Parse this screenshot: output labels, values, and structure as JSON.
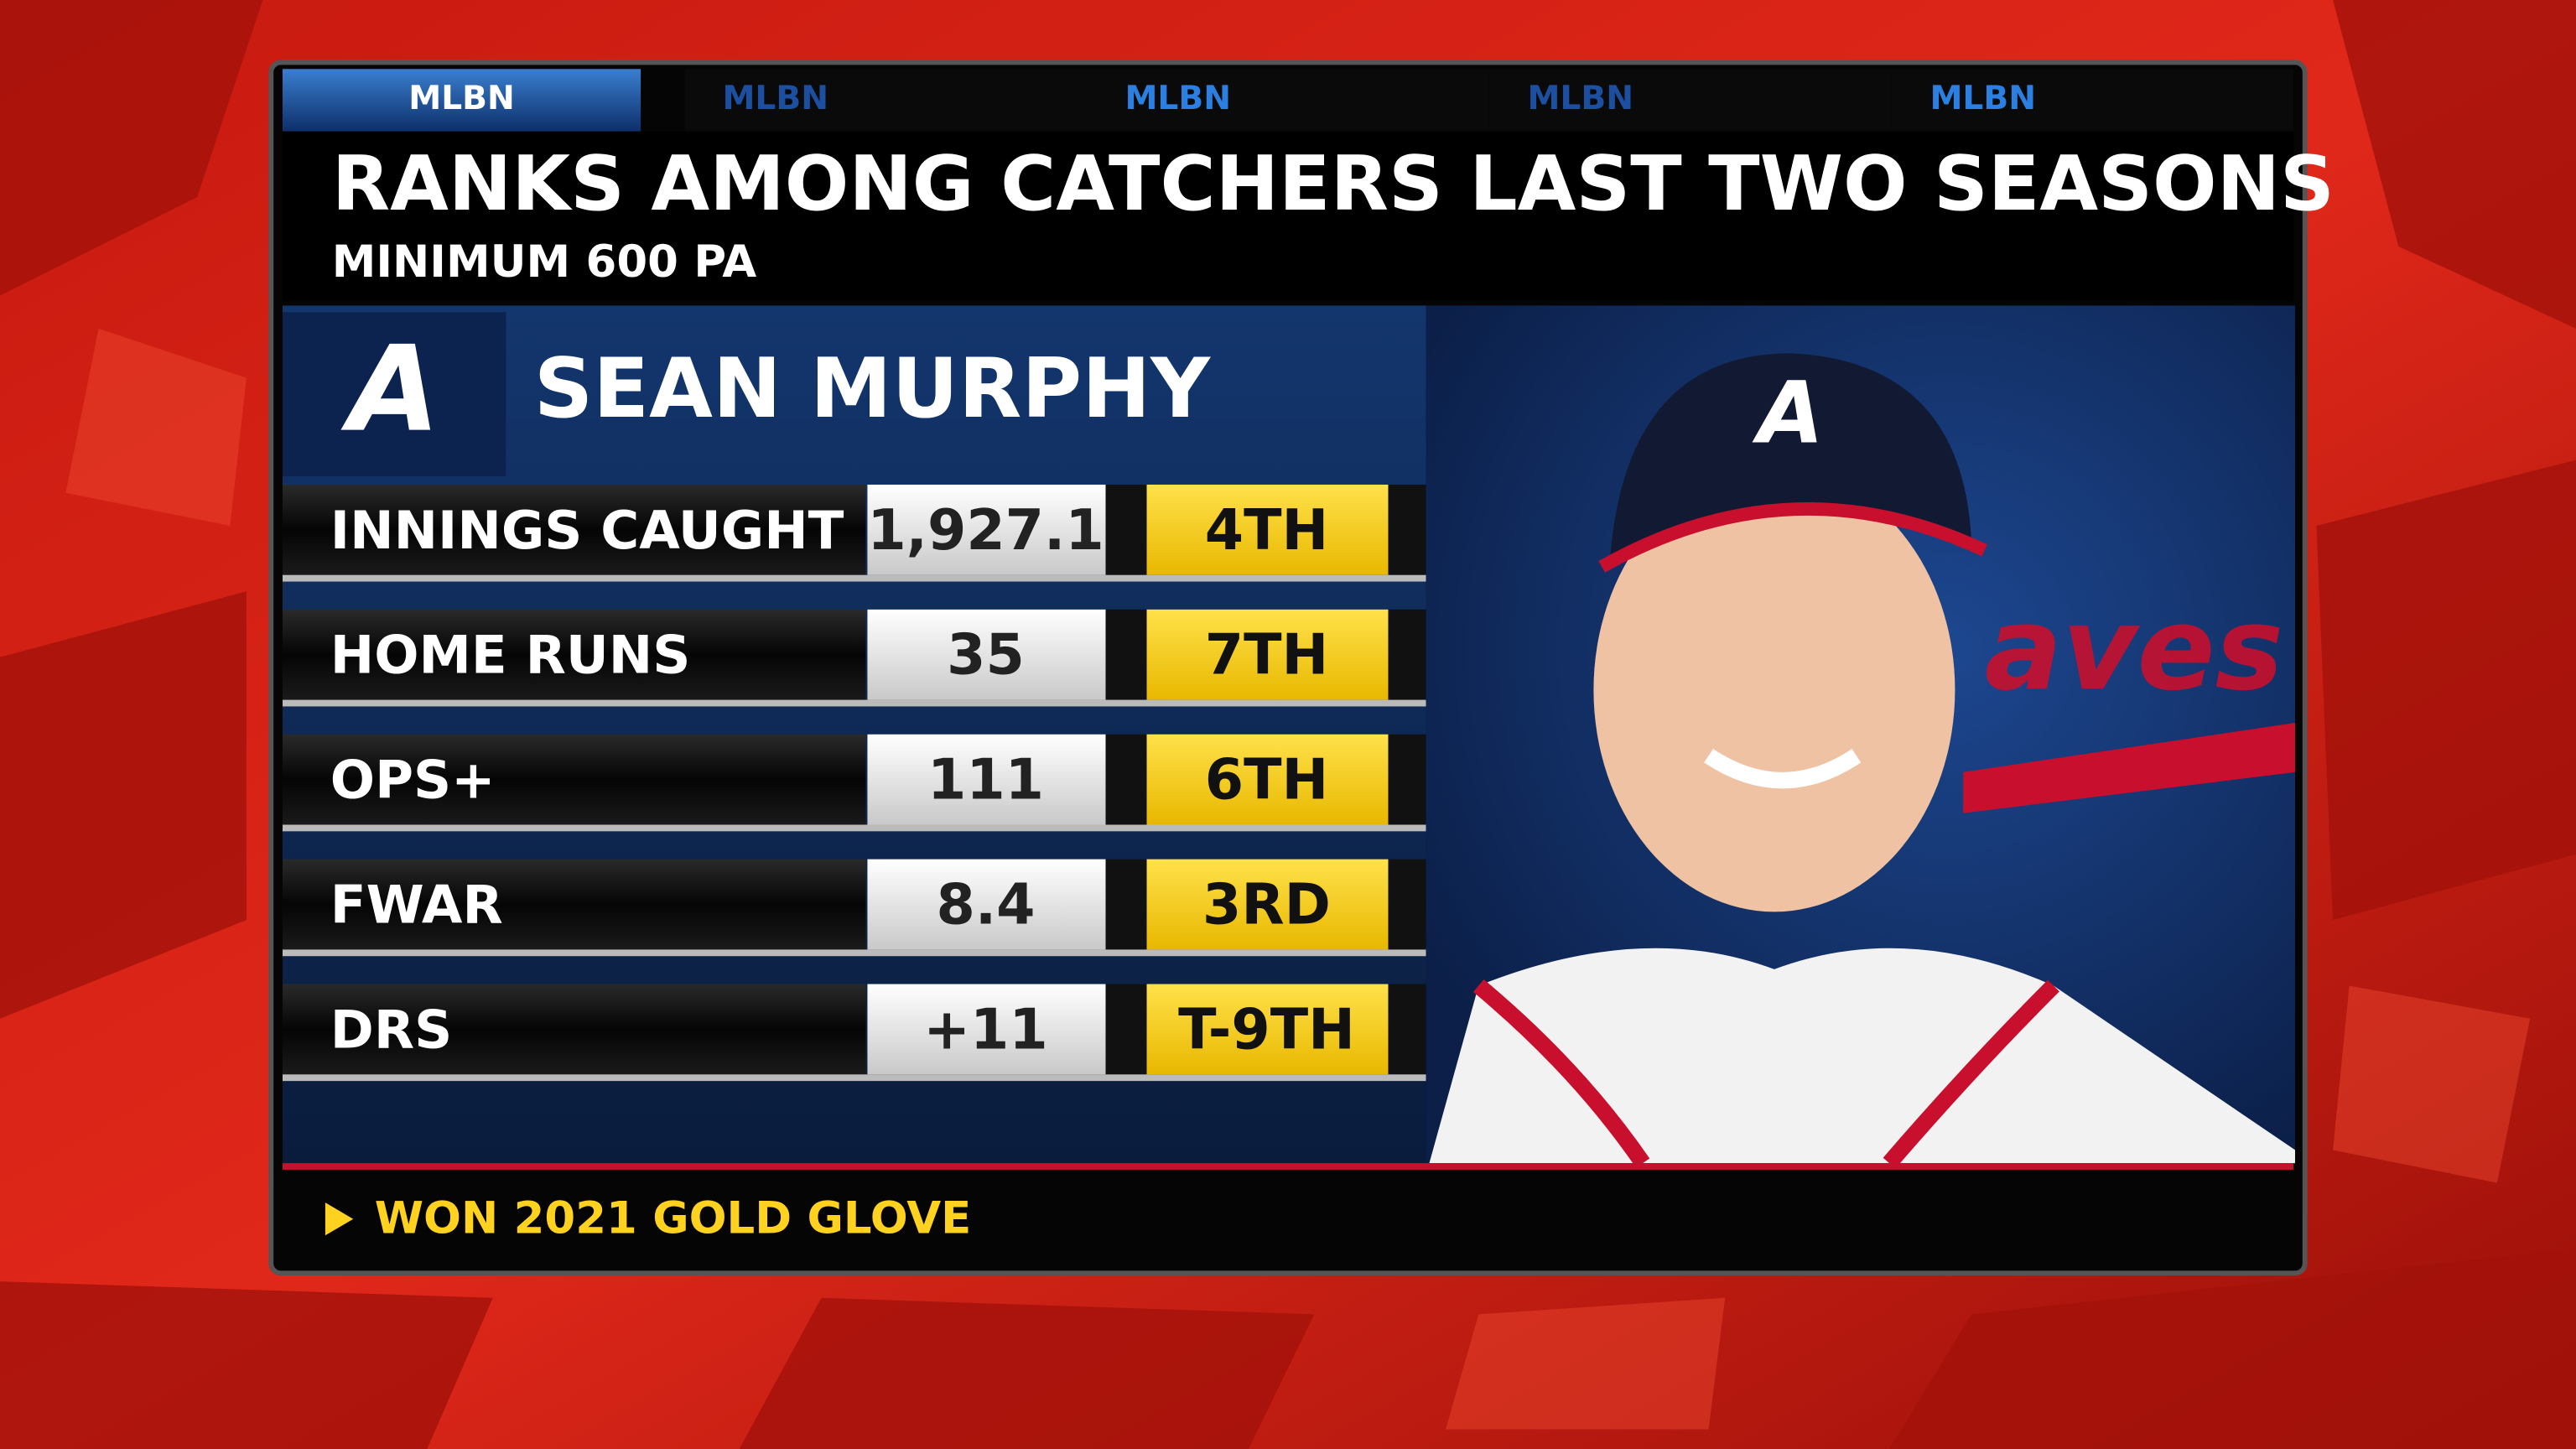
{
  "tabs": [
    "MLBN",
    "MLBN",
    "MLBN",
    "MLBN",
    "MLBN"
  ],
  "header": {
    "title": "RANKS AMONG CATCHERS LAST TWO SEASONS",
    "subtitle": "MINIMUM 600 PA"
  },
  "player": {
    "name": "SEAN MURPHY"
  },
  "table": {
    "rows": [
      [
        "INNINGS CAUGHT",
        "1,927.1",
        "4TH"
      ],
      [
        "HOME RUNS",
        "35",
        "7TH"
      ],
      [
        "OPS+",
        "111",
        "6TH"
      ],
      [
        "FWAR",
        "8.4",
        "3RD"
      ],
      [
        "DRS",
        "+11",
        "T-9TH"
      ]
    ]
  },
  "footnote": "WON 2021 GOLD GLOVE"
}
